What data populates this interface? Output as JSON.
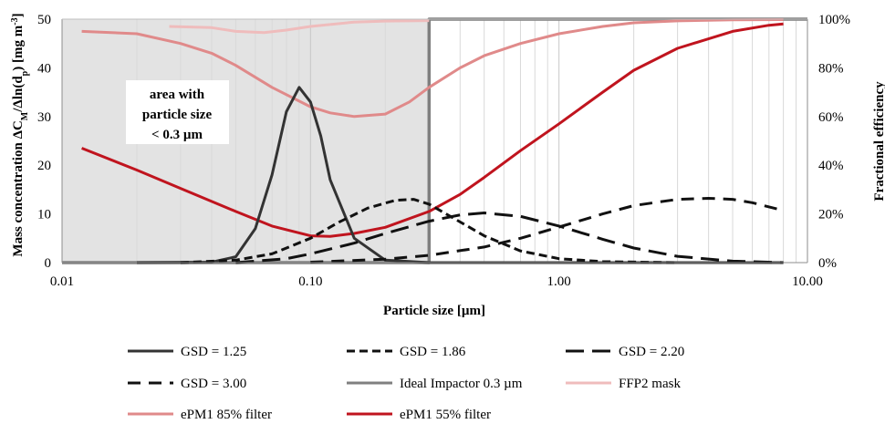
{
  "chart_data": {
    "type": "line",
    "xlabel": "Particle size [µm]",
    "ylabel_left": "Mass concentration ΔC_M/Δln(d_p) [mg m⁻³]",
    "ylabel_right": "Fractional efficiency",
    "x_scale": "log",
    "xlim": [
      0.01,
      10.0
    ],
    "ylim_left": [
      0,
      50
    ],
    "ylim_right": [
      0,
      100
    ],
    "x_ticks": [
      "0.01",
      "0.10",
      "1.00",
      "10.00"
    ],
    "y_ticks_left": [
      "0",
      "10",
      "20",
      "30",
      "40",
      "50"
    ],
    "y_ticks_right": [
      "0%",
      "20%",
      "40%",
      "60%",
      "80%",
      "100%"
    ],
    "grid": "vertical minor log gridlines",
    "shaded_region": {
      "x": [
        0.01,
        0.3
      ],
      "label": "area with particle size < 0.3 µm"
    },
    "legend_position": "bottom",
    "series": [
      {
        "name": "GSD = 1.25",
        "axis": "left",
        "color": "#333333",
        "style": "solid",
        "x": [
          0.02,
          0.04,
          0.05,
          0.06,
          0.07,
          0.08,
          0.09,
          0.1,
          0.11,
          0.12,
          0.15,
          0.2,
          0.3,
          0.5,
          1,
          3,
          8
        ],
        "y": [
          0,
          0.1,
          1.2,
          7,
          18,
          31,
          36,
          33,
          26,
          17,
          5,
          0.5,
          0,
          0,
          0,
          0,
          0
        ]
      },
      {
        "name": "GSD = 1.86",
        "axis": "left",
        "color": "#111111",
        "style": "short-dash",
        "x": [
          0.03,
          0.05,
          0.07,
          0.1,
          0.13,
          0.17,
          0.22,
          0.26,
          0.3,
          0.38,
          0.5,
          0.7,
          1,
          1.5,
          3
        ],
        "y": [
          0,
          0.5,
          1.8,
          5,
          8.3,
          11.2,
          12.8,
          13,
          12,
          9,
          5.5,
          2.4,
          0.8,
          0.2,
          0
        ]
      },
      {
        "name": "GSD = 2.20",
        "axis": "left",
        "color": "#111111",
        "style": "long-dash",
        "x": [
          0.05,
          0.08,
          0.1,
          0.15,
          0.2,
          0.3,
          0.4,
          0.5,
          0.7,
          1,
          1.5,
          2,
          3,
          5,
          8
        ],
        "y": [
          0,
          0.8,
          1.8,
          4,
          6,
          8.5,
          9.8,
          10.2,
          9.5,
          7.5,
          4.8,
          3,
          1.3,
          0.3,
          0
        ]
      },
      {
        "name": "GSD = 3.00",
        "axis": "left",
        "color": "#111111",
        "style": "dash",
        "x": [
          0.1,
          0.2,
          0.3,
          0.5,
          0.7,
          1,
          1.5,
          2,
          3,
          4,
          5,
          6,
          8
        ],
        "y": [
          0.1,
          0.7,
          1.5,
          3.2,
          5,
          7.3,
          10,
          11.7,
          13,
          13.2,
          13,
          12.3,
          10.7
        ]
      },
      {
        "name": "Ideal Impactor 0.3 µm",
        "axis": "right",
        "color": "#7f7f7f",
        "style": "solid",
        "x": [
          0.01,
          0.3,
          0.3,
          10
        ],
        "y": [
          0,
          0,
          100,
          100
        ]
      },
      {
        "name": "FFP2 mask",
        "axis": "right",
        "color": "#efbcbc",
        "style": "solid",
        "x": [
          0.027,
          0.04,
          0.05,
          0.065,
          0.08,
          0.1,
          0.15,
          0.2,
          0.3
        ],
        "y": [
          97,
          96.5,
          95,
          94.5,
          95.5,
          97,
          98.8,
          99.2,
          99.4
        ]
      },
      {
        "name": "ePM1 85% filter",
        "axis": "right",
        "color": "#e08a8a",
        "style": "solid",
        "x": [
          0.012,
          0.02,
          0.03,
          0.04,
          0.05,
          0.07,
          0.1,
          0.12,
          0.15,
          0.2,
          0.25,
          0.3,
          0.4,
          0.5,
          0.7,
          1,
          1.5,
          2,
          3,
          5,
          8
        ],
        "y": [
          95,
          94,
          90,
          86,
          81,
          72,
          64,
          61.5,
          60,
          61,
          66,
          72,
          80,
          85,
          90,
          94,
          97,
          98.5,
          99.3,
          99.7,
          99.8
        ]
      },
      {
        "name": "ePM1 55% filter",
        "axis": "right",
        "color": "#c0141e",
        "style": "solid",
        "x": [
          0.012,
          0.02,
          0.03,
          0.05,
          0.07,
          0.1,
          0.12,
          0.15,
          0.2,
          0.3,
          0.4,
          0.5,
          0.7,
          1,
          1.5,
          2,
          3,
          5,
          7,
          8
        ],
        "y": [
          47,
          38,
          30.5,
          21,
          15,
          11,
          10.8,
          12,
          14.5,
          21,
          28,
          35,
          46,
          57,
          70,
          79,
          88,
          95,
          97.5,
          98
        ]
      }
    ],
    "annotation": [
      "area with",
      "particle size",
      "< 0.3 µm"
    ]
  }
}
